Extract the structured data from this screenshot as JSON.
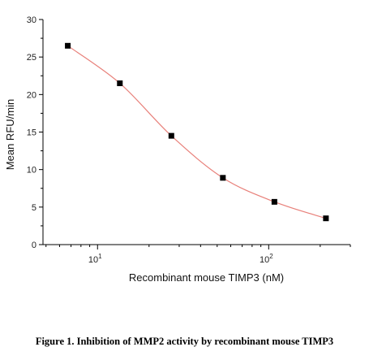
{
  "caption": "Figure 1. Inhibition of MMP2 activity by recombinant mouse TIMP3",
  "chart_data": {
    "type": "scatter",
    "title": "",
    "xlabel": "Recombinant mouse TIMP3 (nM)",
    "ylabel": "Mean RFU/min",
    "x_scale": "log",
    "xlim": [
      4.8,
      300
    ],
    "ylim": [
      0,
      30
    ],
    "y_ticks": [
      0,
      5,
      10,
      15,
      20,
      25,
      30
    ],
    "x_major_ticks": [
      {
        "value": 10,
        "label_base": "10",
        "label_exp": "1"
      },
      {
        "value": 100,
        "label_base": "10",
        "label_exp": "2"
      }
    ],
    "grid": false,
    "legend": "none",
    "series": [
      {
        "x": [
          6.7,
          13.5,
          27,
          54,
          108,
          216
        ],
        "y": [
          26.5,
          21.5,
          14.5,
          8.9,
          5.7,
          3.5
        ],
        "marker_color": "#000000",
        "fit_curve_color": "#e8807a"
      }
    ]
  }
}
